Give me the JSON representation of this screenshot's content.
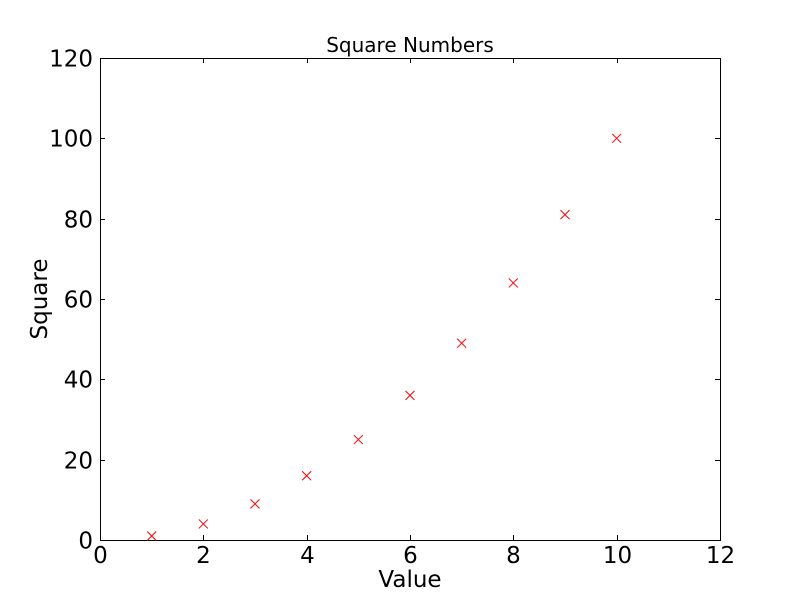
{
  "figure": {
    "background": "#ffffff"
  },
  "chart_data": {
    "type": "scatter",
    "title": "Square Numbers",
    "xlabel": "Value",
    "ylabel": "Square",
    "x": [
      1,
      2,
      3,
      4,
      5,
      6,
      7,
      8,
      9,
      10
    ],
    "y": [
      1,
      4,
      9,
      16,
      25,
      36,
      49,
      64,
      81,
      100
    ],
    "xlim": [
      0,
      12
    ],
    "ylim": [
      0,
      120
    ],
    "xticks": [
      0,
      2,
      4,
      6,
      8,
      10,
      12
    ],
    "yticks": [
      0,
      20,
      40,
      60,
      80,
      100,
      120
    ],
    "marker": "x",
    "marker_color": "#ff0000",
    "axis_color": "#000000",
    "text_color": "#000000",
    "grid": false,
    "legend_position": "none"
  }
}
